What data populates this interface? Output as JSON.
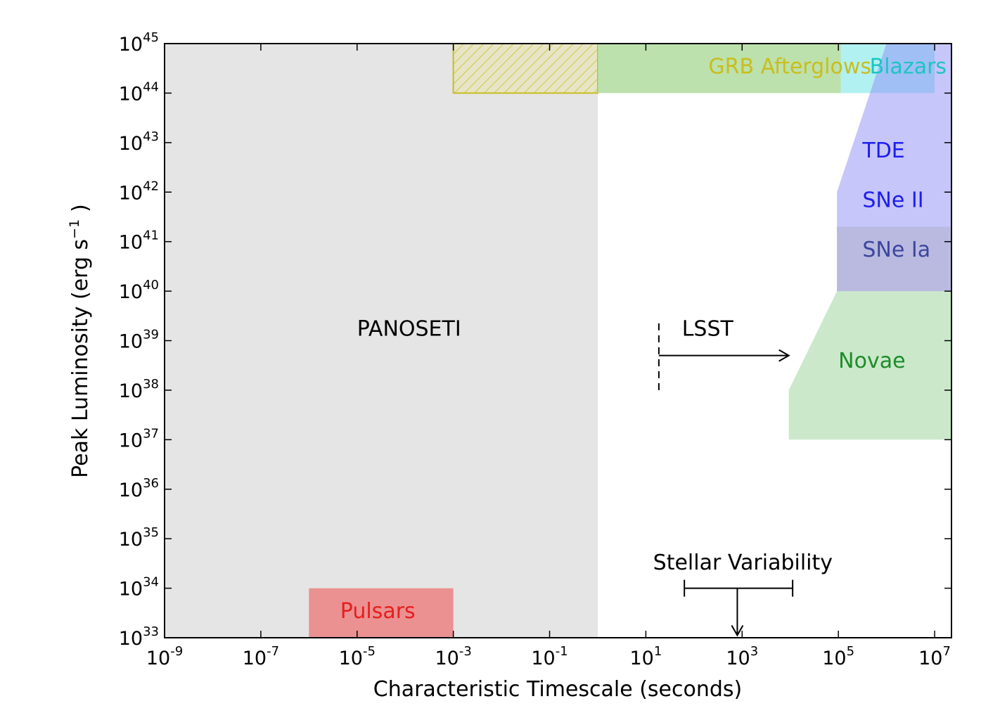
{
  "chart_data": {
    "type": "area",
    "title": "",
    "xlabel": "Characteristic Timescale (seconds)",
    "ylabel": {
      "main": "Peak Luminosity (erg s",
      "sup": "−1",
      "close": ")"
    },
    "xscale": "log",
    "yscale": "log",
    "xlim_exp": [
      -9,
      7.35
    ],
    "ylim_exp": [
      33,
      45
    ],
    "grid": false,
    "legend": "none",
    "x_ticks": [
      {
        "base": "10",
        "exp": "-9",
        "value_exp": -9
      },
      {
        "base": "10",
        "exp": "-7",
        "value_exp": -7
      },
      {
        "base": "10",
        "exp": "-5",
        "value_exp": -5
      },
      {
        "base": "10",
        "exp": "-3",
        "value_exp": -3
      },
      {
        "base": "10",
        "exp": "-1",
        "value_exp": -1
      },
      {
        "base": "10",
        "exp": "1",
        "value_exp": 1
      },
      {
        "base": "10",
        "exp": "3",
        "value_exp": 3
      },
      {
        "base": "10",
        "exp": "5",
        "value_exp": 5
      },
      {
        "base": "10",
        "exp": "7",
        "value_exp": 7
      }
    ],
    "y_ticks": [
      {
        "base": "10",
        "exp": "33",
        "value_exp": 33
      },
      {
        "base": "10",
        "exp": "34",
        "value_exp": 34
      },
      {
        "base": "10",
        "exp": "35",
        "value_exp": 35
      },
      {
        "base": "10",
        "exp": "36",
        "value_exp": 36
      },
      {
        "base": "10",
        "exp": "37",
        "value_exp": 37
      },
      {
        "base": "10",
        "exp": "38",
        "value_exp": 38
      },
      {
        "base": "10",
        "exp": "39",
        "value_exp": 39
      },
      {
        "base": "10",
        "exp": "40",
        "value_exp": 40
      },
      {
        "base": "10",
        "exp": "41",
        "value_exp": 41
      },
      {
        "base": "10",
        "exp": "42",
        "value_exp": 42
      },
      {
        "base": "10",
        "exp": "43",
        "value_exp": 43
      },
      {
        "base": "10",
        "exp": "44",
        "value_exp": 44
      },
      {
        "base": "10",
        "exp": "45",
        "value_exp": 45
      }
    ],
    "regions": [
      {
        "id": "panoseti",
        "label": "PANOSETI",
        "color": "#e5e5e5",
        "opacity": 1.0,
        "label_color": "#000000",
        "polygon_exp": [
          [
            -9,
            33
          ],
          [
            0,
            33
          ],
          [
            0,
            45
          ],
          [
            -9,
            45
          ]
        ],
        "label_at_exp": [
          -5,
          39.1
        ]
      },
      {
        "id": "grb-hatched",
        "label": "",
        "color": "#e8e4b0",
        "opacity": 0.6,
        "hatch": true,
        "edge_color": "#c8be1e",
        "polygon_exp": [
          [
            -3,
            44
          ],
          [
            0,
            44
          ],
          [
            0,
            45
          ],
          [
            -3,
            45
          ]
        ]
      },
      {
        "id": "grb-afterglows",
        "label": "GRB Afterglows",
        "color": "#b0dc9e",
        "opacity": 0.85,
        "label_color": "#c8be1e",
        "polygon_exp": [
          [
            0,
            44
          ],
          [
            5.05,
            44
          ],
          [
            5.05,
            45
          ],
          [
            0,
            45
          ]
        ],
        "label_at_exp": [
          2.3,
          44.4
        ]
      },
      {
        "id": "blazars",
        "label": "Blazars",
        "color": "#7ee8e8",
        "opacity": 0.6,
        "label_color": "#1ec4c4",
        "polygon_exp": [
          [
            5.05,
            44
          ],
          [
            7,
            44
          ],
          [
            7,
            45
          ],
          [
            5.05,
            45
          ]
        ],
        "label_at_exp": [
          5.65,
          44.4
        ]
      },
      {
        "id": "tde-sne2",
        "label": "",
        "color": "#8e8ef8",
        "opacity": 0.5,
        "polygon_exp": [
          [
            4.97,
            40
          ],
          [
            7.35,
            40
          ],
          [
            7.35,
            45
          ],
          [
            6.0,
            45
          ],
          [
            4.97,
            42
          ]
        ]
      },
      {
        "id": "sne1a",
        "label": "",
        "color": "#b4b4d2",
        "opacity": 0.65,
        "polygon_exp": [
          [
            4.97,
            40
          ],
          [
            7.35,
            40
          ],
          [
            7.35,
            41.3
          ],
          [
            4.97,
            41.3
          ]
        ]
      },
      {
        "id": "novae",
        "label": "Novae",
        "color": "#a8d8a8",
        "opacity": 0.6,
        "label_color": "#1e8c28",
        "polygon_exp": [
          [
            3.97,
            37
          ],
          [
            7.35,
            37
          ],
          [
            7.35,
            40
          ],
          [
            4.97,
            40
          ],
          [
            3.97,
            38
          ]
        ],
        "label_at_exp": [
          5.0,
          38.45
        ]
      },
      {
        "id": "pulsars",
        "label": "Pulsars",
        "color": "#eb8c8c",
        "opacity": 0.95,
        "label_color": "#e61e1e",
        "polygon_exp": [
          [
            -6,
            33
          ],
          [
            -3,
            33
          ],
          [
            -3,
            34
          ],
          [
            -6,
            34
          ]
        ],
        "label_at_exp": [
          -5.35,
          33.4
        ]
      }
    ],
    "text_labels": [
      {
        "id": "tde",
        "text": "TDE",
        "color": "#1e1ef0",
        "at_exp": [
          5.5,
          42.7
        ]
      },
      {
        "id": "sne2",
        "text": "SNe II",
        "color": "#1e1ef0",
        "at_exp": [
          5.5,
          41.7
        ]
      },
      {
        "id": "sne1a",
        "text": "SNe Ia",
        "color": "#3c469c",
        "at_exp": [
          5.5,
          40.7
        ]
      }
    ],
    "lsst": {
      "label": "LSST",
      "dash_x_exp": 1.27,
      "dash_y_exp": [
        38,
        39.45
      ],
      "arrow_y_exp": 38.7,
      "arrow_to_x_exp": 3.97,
      "label_at_exp": [
        1.75,
        39.1
      ],
      "color": "#000000"
    },
    "stellar_variability": {
      "label": "Stellar Variability",
      "bar_x_exp": [
        1.8,
        4.05
      ],
      "bar_y_exp": 34,
      "arrow_x_exp": 2.9,
      "arrow_to_y_exp": 33.05,
      "label_at_exp": [
        1.15,
        34.38
      ],
      "color": "#000000"
    }
  }
}
